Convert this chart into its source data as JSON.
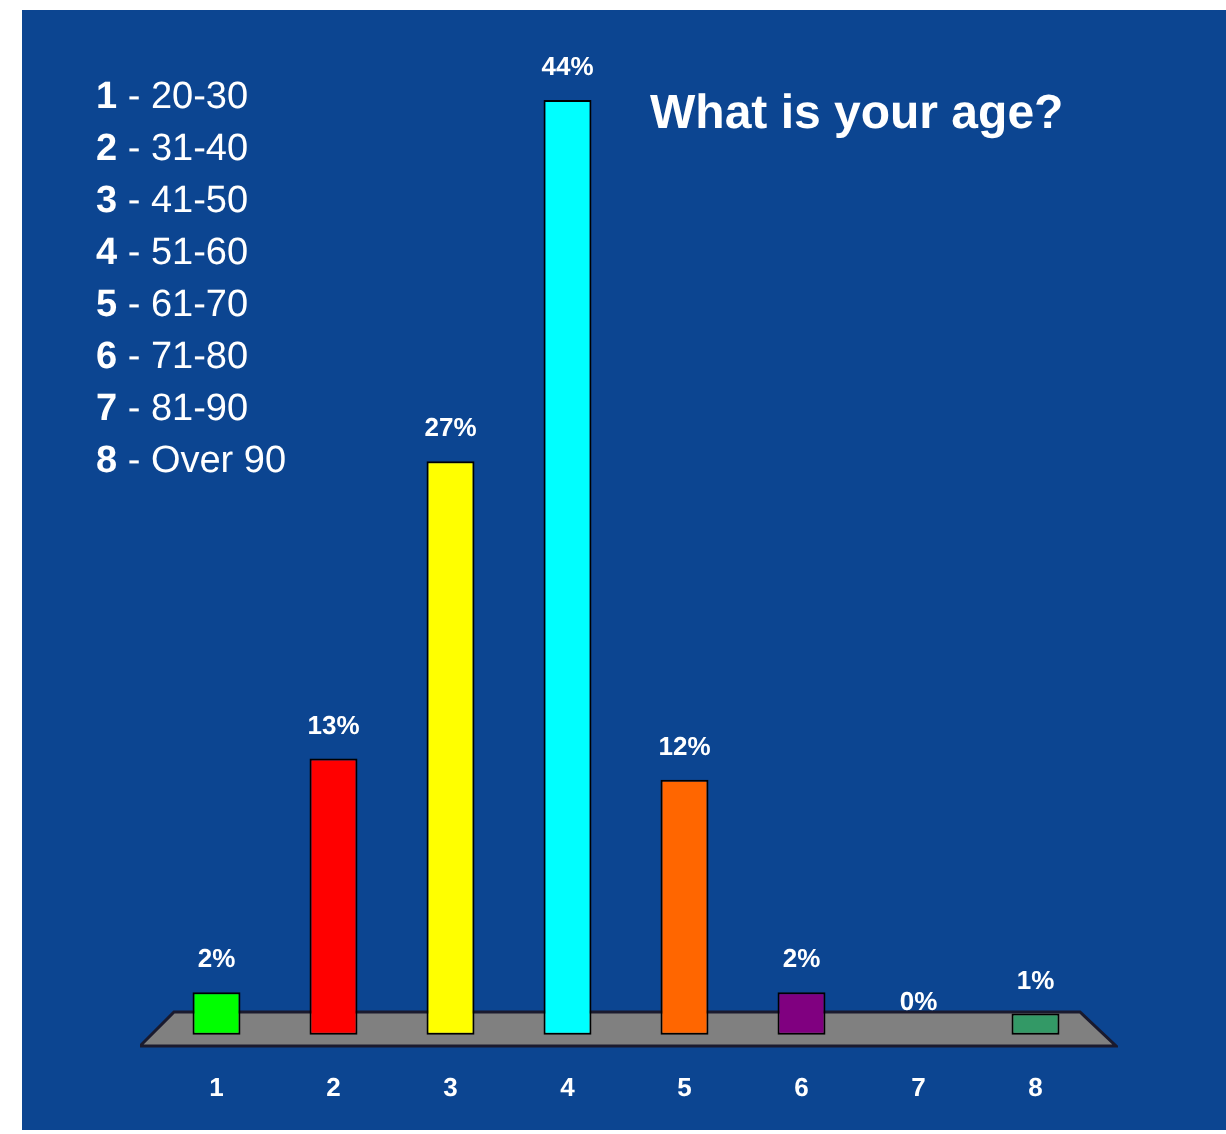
{
  "chart_data": {
    "type": "bar",
    "title": "What is your age?",
    "categories": [
      "1",
      "2",
      "3",
      "4",
      "5",
      "6",
      "7",
      "8"
    ],
    "values": [
      2,
      13,
      27,
      44,
      12,
      2,
      0,
      1
    ],
    "colors": [
      "#00ff00",
      "#ff0000",
      "#ffff00",
      "#00ffff",
      "#ff6600",
      "#800080",
      "#666666",
      "#339966"
    ],
    "value_labels": [
      "2%",
      "13%",
      "27%",
      "44%",
      "12%",
      "2%",
      "0%",
      "1%"
    ],
    "ylim": [
      0,
      44
    ],
    "tick_labels": "x",
    "annotations": [
      "1 - 20-30",
      "2 - 31-40",
      "3 - 41-50",
      "4 - 51-60",
      "5 - 61-70",
      "6 - 71-80",
      "7 - 81-90",
      "8 - Over 90"
    ]
  }
}
